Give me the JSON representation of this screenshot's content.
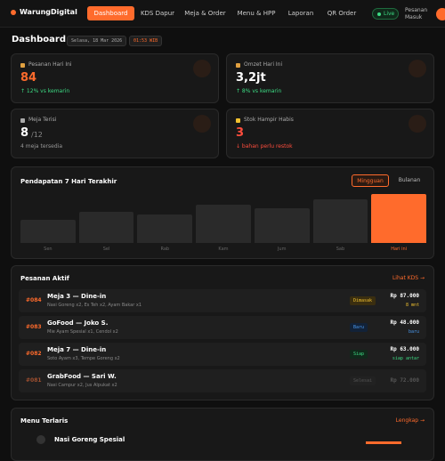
{
  "nav": {
    "brand": "WarungDigital",
    "tabs": [
      "Dashboard",
      "KDS Dapur",
      "Meja & Order",
      "Menu & HPP",
      "Laporan",
      "QR Order"
    ],
    "live": "Live",
    "incoming": "Pesanan Masuk"
  },
  "header": {
    "title": "Dashboard",
    "date": "Selasa, 18 Mar 2026",
    "time": "01:53 WIB"
  },
  "stats": [
    {
      "label": "Pesanan Hari Ini",
      "value": "84",
      "note": "↑ 12% vs kemarin"
    },
    {
      "label": "Omzet Hari Ini",
      "value": "3,2jt",
      "note": "↑ 8% vs kemarin"
    },
    {
      "label": "Meja Terisi",
      "value": "8",
      "total": "/12",
      "note": "4 meja tersedia"
    },
    {
      "label": "Stok Hampir Habis",
      "value": "3",
      "note": "↓ bahan perlu restok"
    }
  ],
  "revenue": {
    "title": "Pendapatan 7 Hari Terakhir",
    "toggles": [
      "Mingguan",
      "Bulanan"
    ],
    "days": [
      "Sen",
      "Sel",
      "Rab",
      "Kam",
      "Jum",
      "Sab",
      "Hari ini"
    ],
    "values": [
      26,
      34,
      31,
      42,
      38,
      48,
      54
    ]
  },
  "orders": {
    "title": "Pesanan Aktif",
    "link": "Lihat KDS →",
    "rows": [
      {
        "id": "#084",
        "title": "Meja 3 — Dine-in",
        "items": "Nasi Goreng x2, Es Teh x2, Ayam Bakar x1",
        "status": "Dimasak",
        "price": "Rp 87.000",
        "note": "8 mnt"
      },
      {
        "id": "#083",
        "title": "GoFood — Joko S.",
        "items": "Mie Ayam Spesial x1, Cendol x2",
        "status": "Baru",
        "price": "Rp 48.000",
        "note": "baru"
      },
      {
        "id": "#082",
        "title": "Meja 7 — Dine-in",
        "items": "Soto Ayam x3, Tempe Goreng x2",
        "status": "Siap",
        "price": "Rp 63.000",
        "note": "siap antar"
      },
      {
        "id": "#081",
        "title": "GrabFood — Sari W.",
        "items": "Nasi Campur x2, Jus Alpukat x2",
        "status": "Selesai",
        "price": "Rp 72.000"
      }
    ]
  },
  "top_menu": {
    "title": "Menu Terlaris",
    "link": "Lengkap →",
    "items": [
      "Nasi Goreng Spesial"
    ]
  }
}
